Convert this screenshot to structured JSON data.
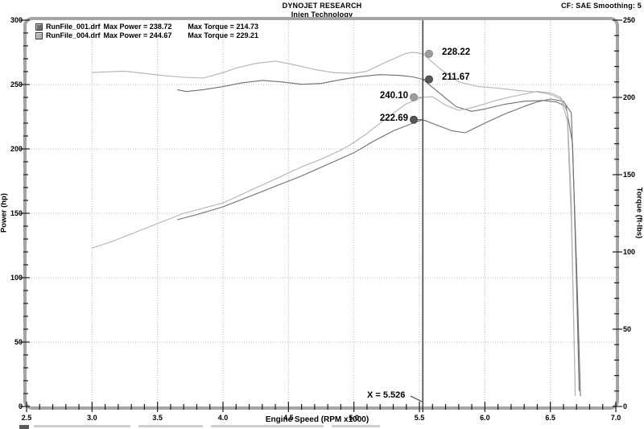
{
  "header": {
    "title": "DYNOJET RESEARCH",
    "subtitle": "Injen Technology",
    "top_right": "CF: SAE  Smoothing: 5"
  },
  "legend": {
    "runs": [
      {
        "file": "RunFile_001.drf",
        "power": "Max Power = 238.72",
        "torque": "Max Torque = 214.73",
        "color": "#6f6f6f"
      },
      {
        "file": "RunFile_004.drf",
        "power": "Max Power = 244.67",
        "torque": "Max Torque = 229.21",
        "color": "#b3b3b3"
      }
    ]
  },
  "axes": {
    "x": {
      "label": "Engine Speed (RPM x1000)",
      "min": 2.5,
      "max": 7.0,
      "major": 0.5,
      "minor": 0.1,
      "tick_labels": [
        "2.5",
        "3.0",
        "3.5",
        "4.0",
        "4.5",
        "5.0",
        "5.5",
        "6.0",
        "6.5",
        "7.0"
      ]
    },
    "power": {
      "label": "Power (hp)",
      "min": 0,
      "max": 300,
      "major": 50,
      "minor": 10,
      "tick_labels": [
        "300",
        "250",
        "200",
        "150",
        "100",
        "50",
        "0"
      ]
    },
    "torque": {
      "label": "Torque (ft-lbs)",
      "min": 0,
      "max": 250,
      "major": 50,
      "minor": 10,
      "tick_labels": [
        "250",
        "200",
        "150",
        "100",
        "50",
        "0"
      ]
    }
  },
  "cursor": {
    "x": 5.526,
    "x_label": "X = 5.526",
    "values": [
      {
        "label": "228.22",
        "value": 228.22,
        "axis": "torque",
        "series": "RunFile_004.drf",
        "side": "right"
      },
      {
        "label": "211.67",
        "value": 211.67,
        "axis": "torque",
        "series": "RunFile_001.drf",
        "side": "right"
      },
      {
        "label": "240.10",
        "value": 240.1,
        "axis": "power",
        "series": "RunFile_004.drf",
        "side": "left"
      },
      {
        "label": "222.69",
        "value": 222.69,
        "axis": "power",
        "series": "RunFile_001.drf",
        "side": "left"
      }
    ]
  },
  "chart_data": {
    "type": "line",
    "title": "DYNOJET RESEARCH - Injen Technology",
    "xlabel": "Engine Speed (RPM x1000)",
    "ylabel_left": "Power (hp)",
    "ylabel_right": "Torque (ft-lbs)",
    "xlim": [
      2.5,
      7.0
    ],
    "ylim_power": [
      0,
      300
    ],
    "ylim_torque": [
      0,
      250
    ],
    "grid": "dotted, vertical every 0.5 RPM, horizontal every 50 hp",
    "legend_position": "top-left inside plot",
    "cursor_x": 5.526,
    "series": [
      {
        "name": "RunFile_001.drf",
        "measure": "power",
        "axis": "power",
        "color": "#6f6f6f",
        "max": 238.72,
        "points": [
          [
            3.65,
            145
          ],
          [
            3.8,
            149
          ],
          [
            4.0,
            155
          ],
          [
            4.2,
            163
          ],
          [
            4.4,
            171
          ],
          [
            4.6,
            179
          ],
          [
            4.8,
            188
          ],
          [
            5.0,
            197
          ],
          [
            5.15,
            206
          ],
          [
            5.3,
            214
          ],
          [
            5.45,
            220
          ],
          [
            5.526,
            222.69
          ],
          [
            5.62,
            219
          ],
          [
            5.75,
            214
          ],
          [
            5.85,
            212.5
          ],
          [
            6.0,
            220
          ],
          [
            6.15,
            227
          ],
          [
            6.3,
            233
          ],
          [
            6.4,
            236.5
          ],
          [
            6.5,
            238.72
          ],
          [
            6.6,
            237
          ],
          [
            6.66,
            228
          ],
          [
            6.7,
            110
          ],
          [
            6.73,
            8
          ]
        ]
      },
      {
        "name": "RunFile_001.drf",
        "measure": "torque",
        "axis": "torque",
        "color": "#6f6f6f",
        "max": 214.73,
        "points": [
          [
            3.65,
            205
          ],
          [
            3.72,
            203.8
          ],
          [
            3.85,
            205
          ],
          [
            4.0,
            207
          ],
          [
            4.15,
            209.5
          ],
          [
            4.3,
            211
          ],
          [
            4.45,
            210
          ],
          [
            4.6,
            208.5
          ],
          [
            4.75,
            209
          ],
          [
            4.9,
            211.5
          ],
          [
            5.05,
            213.5
          ],
          [
            5.2,
            214.73
          ],
          [
            5.35,
            214.2
          ],
          [
            5.45,
            213.3
          ],
          [
            5.526,
            211.67
          ],
          [
            5.65,
            203
          ],
          [
            5.78,
            194
          ],
          [
            5.9,
            191
          ],
          [
            6.0,
            192.5
          ],
          [
            6.15,
            195.5
          ],
          [
            6.3,
            197.5
          ],
          [
            6.45,
            198
          ],
          [
            6.55,
            197
          ],
          [
            6.62,
            194
          ],
          [
            6.67,
            170
          ],
          [
            6.7,
            80
          ],
          [
            6.72,
            10
          ]
        ]
      },
      {
        "name": "RunFile_004.drf",
        "measure": "power",
        "axis": "power",
        "color": "#b3b3b3",
        "max": 244.67,
        "points": [
          [
            3.0,
            123
          ],
          [
            3.15,
            128
          ],
          [
            3.3,
            134
          ],
          [
            3.5,
            142
          ],
          [
            3.7,
            150
          ],
          [
            3.85,
            154
          ],
          [
            4.0,
            158
          ],
          [
            4.15,
            165
          ],
          [
            4.3,
            172
          ],
          [
            4.45,
            179
          ],
          [
            4.6,
            186
          ],
          [
            4.75,
            192
          ],
          [
            4.9,
            199
          ],
          [
            5.0,
            205
          ],
          [
            5.1,
            212
          ],
          [
            5.25,
            224
          ],
          [
            5.4,
            235
          ],
          [
            5.526,
            240.1
          ],
          [
            5.6,
            240.5
          ],
          [
            5.7,
            234
          ],
          [
            5.8,
            230
          ],
          [
            5.9,
            232
          ],
          [
            6.0,
            235
          ],
          [
            6.1,
            238
          ],
          [
            6.2,
            240.5
          ],
          [
            6.3,
            242.5
          ],
          [
            6.4,
            244.67
          ],
          [
            6.5,
            243.5
          ],
          [
            6.58,
            240
          ],
          [
            6.63,
            228
          ],
          [
            6.66,
            160
          ],
          [
            6.69,
            8
          ]
        ]
      },
      {
        "name": "RunFile_004.drf",
        "measure": "torque",
        "axis": "torque",
        "color": "#b3b3b3",
        "max": 229.21,
        "points": [
          [
            3.0,
            216
          ],
          [
            3.1,
            216.5
          ],
          [
            3.25,
            217
          ],
          [
            3.4,
            215.5
          ],
          [
            3.55,
            214
          ],
          [
            3.7,
            213
          ],
          [
            3.85,
            212.5
          ],
          [
            4.0,
            216
          ],
          [
            4.1,
            219
          ],
          [
            4.25,
            222
          ],
          [
            4.4,
            223.5
          ],
          [
            4.55,
            221
          ],
          [
            4.7,
            218
          ],
          [
            4.85,
            216
          ],
          [
            5.0,
            215.5
          ],
          [
            5.1,
            217
          ],
          [
            5.25,
            223
          ],
          [
            5.4,
            228.5
          ],
          [
            5.45,
            229.21
          ],
          [
            5.526,
            228.22
          ],
          [
            5.65,
            219
          ],
          [
            5.8,
            210
          ],
          [
            5.95,
            207
          ],
          [
            6.1,
            206
          ],
          [
            6.25,
            204.5
          ],
          [
            6.4,
            203.5
          ],
          [
            6.5,
            202
          ],
          [
            6.58,
            199
          ],
          [
            6.63,
            185
          ],
          [
            6.66,
            120
          ],
          [
            6.69,
            10
          ]
        ]
      }
    ]
  },
  "colors": {
    "frame": "#a5a5a5",
    "grid": "#b8b8b8",
    "tick": "#1a1a1a",
    "cursor": "#3c3c3c",
    "dot_dark": "#585858",
    "dot_light": "#9e9e9e"
  }
}
